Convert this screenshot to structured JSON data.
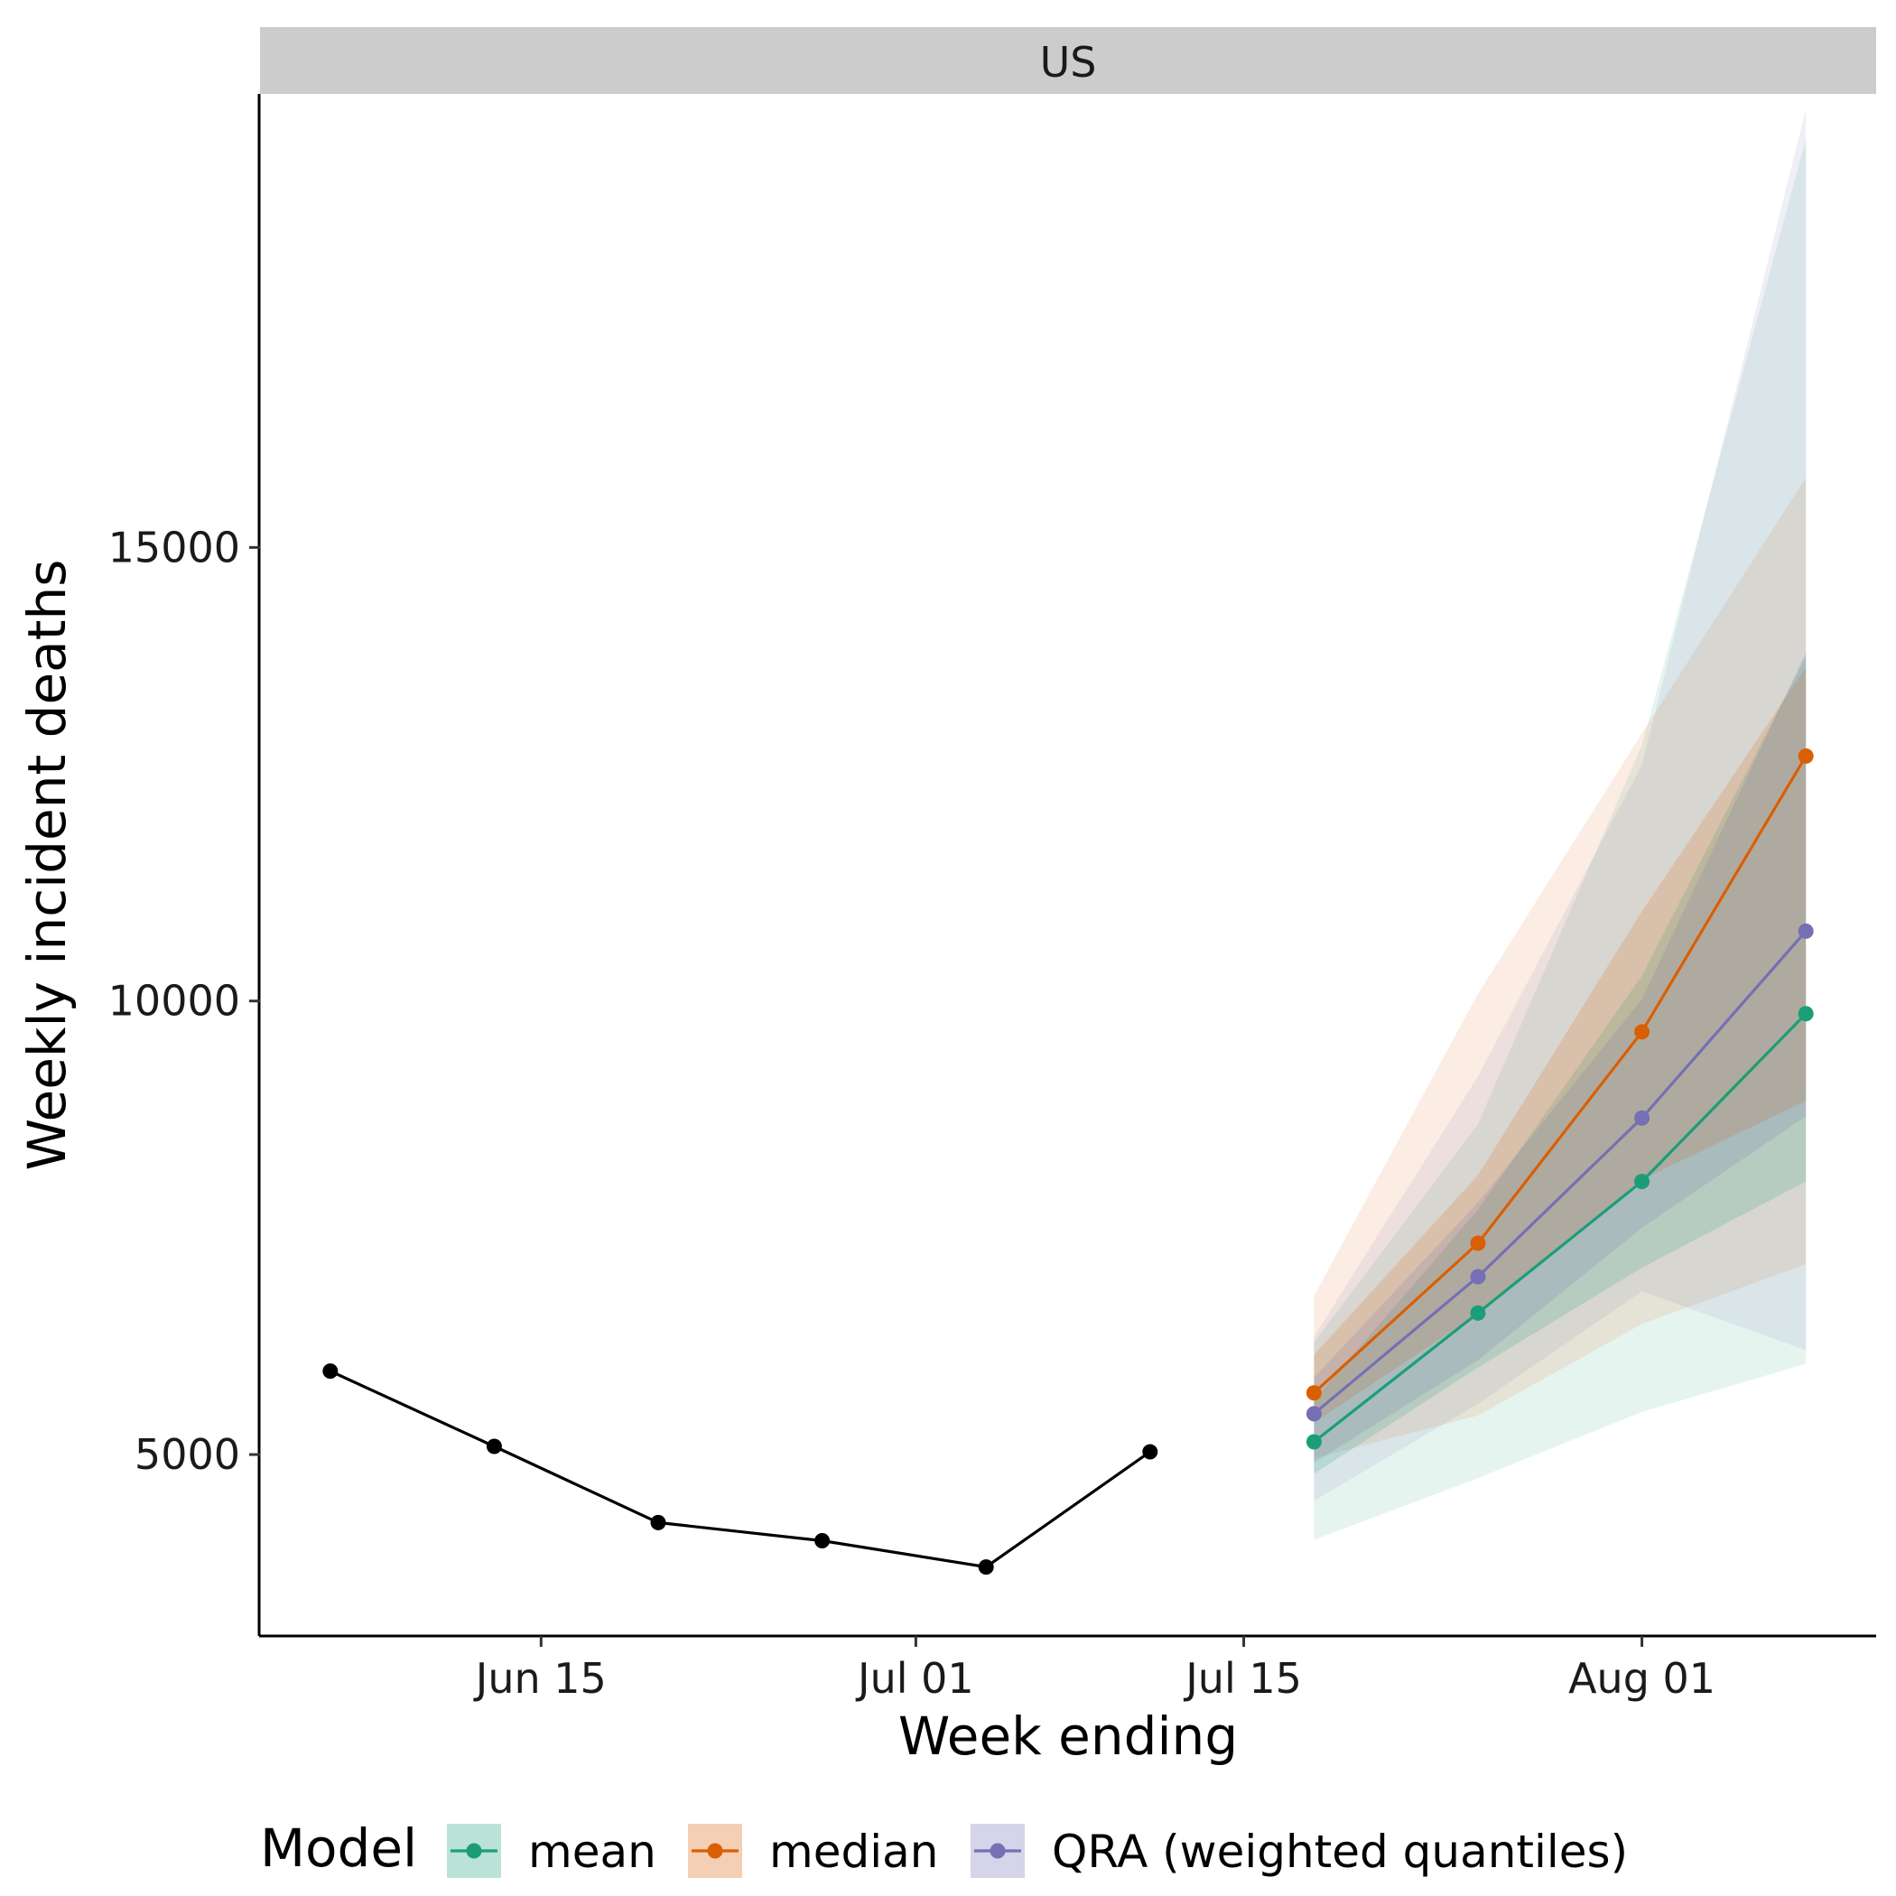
{
  "chart_data": {
    "type": "line",
    "panel_label": "US",
    "xlabel": "Week ending",
    "ylabel": "Weekly incident deaths",
    "x_ticks": [
      "Jun 15",
      "Jul 01",
      "Jul 15",
      "Aug 01"
    ],
    "x_tick_dates": [
      "2021-06-15",
      "2021-07-01",
      "2021-07-15",
      "2021-08-01"
    ],
    "x_range": [
      "2021-06-03",
      "2021-08-11"
    ],
    "y_ticks": [
      5000,
      10000,
      15000
    ],
    "y_tick_labels": [
      "5000",
      "10000",
      "15000"
    ],
    "ylim": [
      3000,
      20000
    ],
    "legend_title": "Model",
    "legend_position": "bottom",
    "grid": false,
    "observed": {
      "color": "#000000",
      "x": [
        "2021-06-06",
        "2021-06-13",
        "2021-06-20",
        "2021-06-27",
        "2021-07-04",
        "2021-07-11"
      ],
      "y": [
        5920,
        5090,
        4250,
        4050,
        3760,
        5030
      ]
    },
    "series": [
      {
        "name": "mean",
        "color": "#1b9e77",
        "x": [
          "2021-07-18",
          "2021-07-25",
          "2021-08-01",
          "2021-08-08"
        ],
        "y": [
          5140,
          6560,
          8010,
          9860
        ],
        "lower_outer": [
          4060,
          4740,
          5470,
          6000
        ],
        "upper_outer": [
          6240,
          8640,
          12820,
          19500
        ],
        "lower_inner": [
          4790,
          5960,
          7060,
          8010
        ],
        "upper_inner": [
          5600,
          7700,
          10280,
          13800
        ]
      },
      {
        "name": "median",
        "color": "#d95f02",
        "x": [
          "2021-07-18",
          "2021-07-25",
          "2021-08-01",
          "2021-08-08"
        ],
        "y": [
          5680,
          7330,
          9660,
          12700
        ],
        "lower_outer": [
          4960,
          5430,
          6440,
          7100
        ],
        "upper_outer": [
          6750,
          10080,
          12950,
          15770
        ],
        "lower_inner": [
          5350,
          6550,
          8030,
          8900
        ],
        "upper_inner": [
          6100,
          8080,
          10990,
          13680
        ]
      },
      {
        "name": "QRA (weighted quantiles)",
        "color": "#7570b3",
        "x": [
          "2021-07-18",
          "2021-07-25",
          "2021-08-01",
          "2021-08-08"
        ],
        "y": [
          5450,
          6960,
          8710,
          10770
        ],
        "lower_outer": [
          4490,
          5560,
          6800,
          6150
        ],
        "upper_outer": [
          6300,
          9170,
          12600,
          19830
        ],
        "lower_inner": [
          4910,
          6040,
          7500,
          8730
        ],
        "upper_inner": [
          5850,
          7780,
          10020,
          13840
        ]
      }
    ]
  }
}
